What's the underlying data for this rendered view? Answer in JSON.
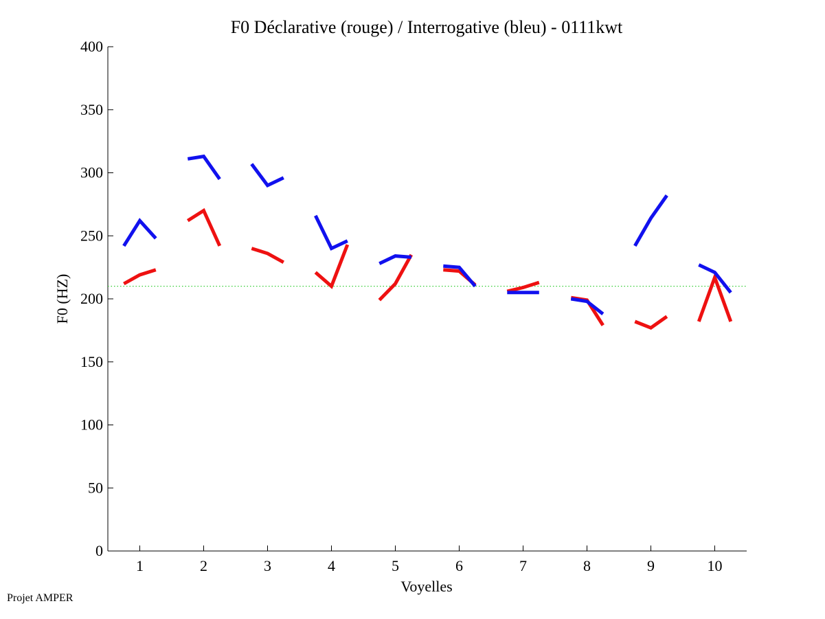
{
  "footer": {
    "label": "Projet AMPER"
  },
  "chart_data": {
    "type": "line",
    "title": "F0 Déclarative (rouge) / Interrogative (bleu) - 0111kwt",
    "xlabel": "Voyelles",
    "ylabel": "F0 (HZ)",
    "xlim": [
      0.5,
      10.5
    ],
    "ylim": [
      0,
      400
    ],
    "x_ticks": [
      1,
      2,
      3,
      4,
      5,
      6,
      7,
      8,
      9,
      10
    ],
    "y_ticks": [
      0,
      50,
      100,
      150,
      200,
      250,
      300,
      350,
      400
    ],
    "reference_line": {
      "y": 210,
      "style": "dotted",
      "color": "#33cc33"
    },
    "grid": false,
    "legend": "none",
    "series": [
      {
        "name": "Déclarative",
        "color": "#ee1111",
        "segments": [
          {
            "vowel": 1,
            "values": [
              212,
              219,
              223
            ]
          },
          {
            "vowel": 2,
            "values": [
              262,
              270,
              242
            ]
          },
          {
            "vowel": 3,
            "values": [
              240,
              236,
              229
            ]
          },
          {
            "vowel": 4,
            "values": [
              221,
              210,
              243
            ]
          },
          {
            "vowel": 5,
            "values": [
              199,
              212,
              235
            ]
          },
          {
            "vowel": 6,
            "values": [
              223,
              222,
              211
            ]
          },
          {
            "vowel": 7,
            "values": [
              206,
              209,
              213
            ]
          },
          {
            "vowel": 8,
            "values": [
              201,
              199,
              179
            ]
          },
          {
            "vowel": 9,
            "values": [
              182,
              177,
              186
            ]
          },
          {
            "vowel": 10,
            "values": [
              182,
              217,
              182
            ]
          }
        ]
      },
      {
        "name": "Interrogative",
        "color": "#1111ee",
        "segments": [
          {
            "vowel": 1,
            "values": [
              242,
              262,
              248
            ]
          },
          {
            "vowel": 2,
            "values": [
              311,
              313,
              295
            ]
          },
          {
            "vowel": 3,
            "values": [
              307,
              290,
              296
            ]
          },
          {
            "vowel": 4,
            "values": [
              266,
              240,
              246
            ]
          },
          {
            "vowel": 5,
            "values": [
              228,
              234,
              233
            ]
          },
          {
            "vowel": 6,
            "values": [
              226,
              225,
              210
            ]
          },
          {
            "vowel": 7,
            "values": [
              205,
              205,
              205
            ]
          },
          {
            "vowel": 8,
            "values": [
              200,
              198,
              188
            ]
          },
          {
            "vowel": 9,
            "values": [
              242,
              264,
              282
            ]
          },
          {
            "vowel": 10,
            "values": [
              227,
              221,
              205
            ]
          }
        ]
      }
    ]
  }
}
